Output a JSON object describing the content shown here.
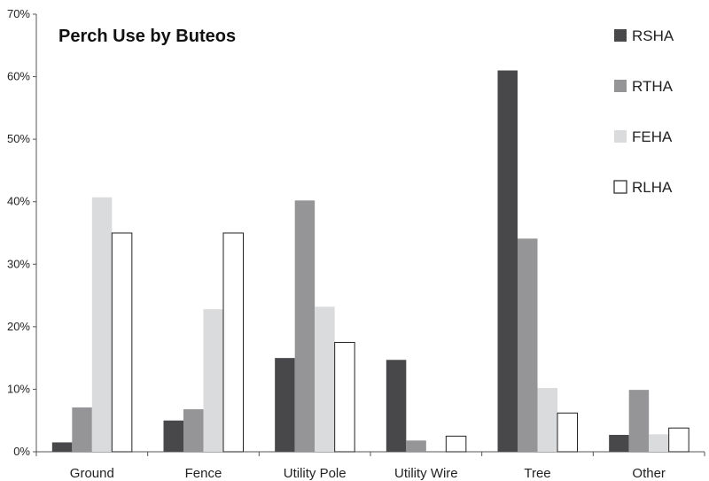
{
  "chart_data": {
    "type": "bar",
    "title": "Perch Use by Buteos",
    "xlabel": "",
    "ylabel": "",
    "ylim": [
      0,
      70
    ],
    "y_tick_format": "percent",
    "y_ticks": [
      "0%",
      "10%",
      "20%",
      "30%",
      "40%",
      "50%",
      "60%",
      "70%"
    ],
    "grid": false,
    "legend_position": "top-right",
    "categories": [
      "Ground",
      "Fence",
      "Utility Pole",
      "Utility Wire",
      "Tree",
      "Other"
    ],
    "series": [
      {
        "name": "RSHA",
        "color": "#48484a",
        "values": [
          1.5,
          5.0,
          15.0,
          14.7,
          61.0,
          2.7
        ]
      },
      {
        "name": "RTHA",
        "color": "#959597",
        "values": [
          7.1,
          6.8,
          40.2,
          1.8,
          34.1,
          9.9
        ]
      },
      {
        "name": "FEHA",
        "color": "#dadbdc",
        "values": [
          40.7,
          22.8,
          23.2,
          0,
          10.2,
          2.8
        ]
      },
      {
        "name": "RLHA",
        "color": "#ffffff",
        "values": [
          35.0,
          35.0,
          17.5,
          2.5,
          6.2,
          3.8
        ]
      }
    ]
  }
}
